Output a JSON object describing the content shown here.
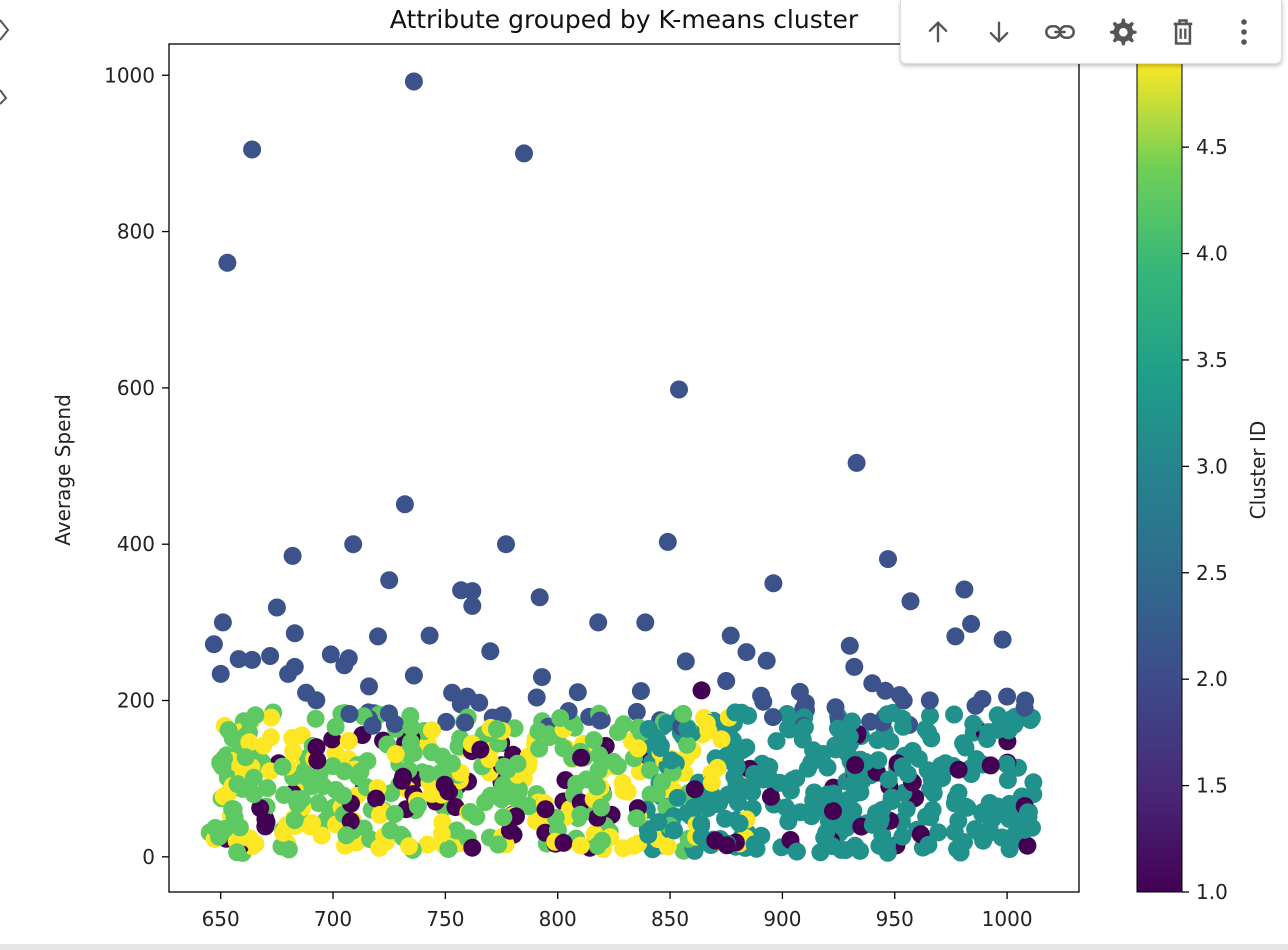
{
  "toolbar": {
    "buttons": [
      {
        "name": "move-up-button",
        "icon": "arrow-up-icon"
      },
      {
        "name": "move-down-button",
        "icon": "arrow-down-icon"
      },
      {
        "name": "copy-link-button",
        "icon": "link-icon"
      },
      {
        "name": "settings-button",
        "icon": "gear-icon"
      },
      {
        "name": "delete-button",
        "icon": "trash-icon"
      },
      {
        "name": "more-options-button",
        "icon": "more-vert-icon"
      }
    ]
  },
  "chart_data": {
    "type": "scatter",
    "title": "Attribute grouped by K-means cluster",
    "xlabel": "",
    "ylabel": "Average Spend",
    "xlim": [
      627,
      1032
    ],
    "ylim": [
      -45,
      1040
    ],
    "xticks": [
      650,
      700,
      750,
      800,
      850,
      900,
      950,
      1000
    ],
    "yticks": [
      0,
      200,
      400,
      600,
      800,
      1000
    ],
    "colorbar": {
      "label": "Cluster ID",
      "range": [
        1.0,
        4.9
      ],
      "ticks": [
        1.0,
        1.5,
        2.0,
        2.5,
        3.0,
        3.5,
        4.0,
        4.5
      ],
      "colormap": "viridis"
    },
    "colors": {
      "1": "#440154",
      "2": "#3b528b",
      "3": "#21918c",
      "4": "#5ec962",
      "5": "#fde725"
    },
    "outliers": [
      {
        "x": 653,
        "y": 760,
        "c": 2
      },
      {
        "x": 664,
        "y": 905,
        "c": 2
      },
      {
        "x": 736,
        "y": 992,
        "c": 2
      },
      {
        "x": 785,
        "y": 900,
        "c": 2
      },
      {
        "x": 854,
        "y": 598,
        "c": 2
      },
      {
        "x": 933,
        "y": 504,
        "c": 2
      },
      {
        "x": 732,
        "y": 451,
        "c": 2
      },
      {
        "x": 849,
        "y": 403,
        "c": 2
      },
      {
        "x": 709,
        "y": 400,
        "c": 2
      },
      {
        "x": 777,
        "y": 400,
        "c": 2
      },
      {
        "x": 682,
        "y": 385,
        "c": 2
      },
      {
        "x": 947,
        "y": 381,
        "c": 2
      },
      {
        "x": 725,
        "y": 354,
        "c": 2
      },
      {
        "x": 896,
        "y": 350,
        "c": 2
      },
      {
        "x": 981,
        "y": 342,
        "c": 2
      },
      {
        "x": 757,
        "y": 341,
        "c": 2
      },
      {
        "x": 762,
        "y": 340,
        "c": 2
      },
      {
        "x": 792,
        "y": 332,
        "c": 2
      },
      {
        "x": 957,
        "y": 327,
        "c": 2
      },
      {
        "x": 762,
        "y": 321,
        "c": 2
      },
      {
        "x": 675,
        "y": 319,
        "c": 2
      },
      {
        "x": 651,
        "y": 300,
        "c": 2
      },
      {
        "x": 818,
        "y": 300,
        "c": 2
      },
      {
        "x": 839,
        "y": 300,
        "c": 2
      },
      {
        "x": 984,
        "y": 298,
        "c": 2
      },
      {
        "x": 683,
        "y": 286,
        "c": 2
      },
      {
        "x": 743,
        "y": 283,
        "c": 2
      },
      {
        "x": 720,
        "y": 282,
        "c": 2
      },
      {
        "x": 877,
        "y": 283,
        "c": 2
      },
      {
        "x": 977,
        "y": 282,
        "c": 2
      },
      {
        "x": 998,
        "y": 278,
        "c": 2
      },
      {
        "x": 647,
        "y": 272,
        "c": 2
      },
      {
        "x": 930,
        "y": 270,
        "c": 2
      },
      {
        "x": 770,
        "y": 263,
        "c": 2
      },
      {
        "x": 884,
        "y": 262,
        "c": 2
      },
      {
        "x": 699,
        "y": 259,
        "c": 2
      },
      {
        "x": 672,
        "y": 257,
        "c": 2
      },
      {
        "x": 707,
        "y": 254,
        "c": 2
      },
      {
        "x": 658,
        "y": 253,
        "c": 2
      },
      {
        "x": 664,
        "y": 252,
        "c": 2
      },
      {
        "x": 893,
        "y": 251,
        "c": 2
      },
      {
        "x": 857,
        "y": 250,
        "c": 2
      },
      {
        "x": 705,
        "y": 245,
        "c": 2
      },
      {
        "x": 683,
        "y": 243,
        "c": 2
      },
      {
        "x": 932,
        "y": 243,
        "c": 2
      },
      {
        "x": 650,
        "y": 234,
        "c": 2
      },
      {
        "x": 680,
        "y": 234,
        "c": 2
      },
      {
        "x": 736,
        "y": 232,
        "c": 2
      },
      {
        "x": 793,
        "y": 230,
        "c": 2
      },
      {
        "x": 875,
        "y": 225,
        "c": 2
      },
      {
        "x": 940,
        "y": 222,
        "c": 2
      },
      {
        "x": 716,
        "y": 218,
        "c": 2
      },
      {
        "x": 864,
        "y": 213,
        "c": 1
      },
      {
        "x": 837,
        "y": 212,
        "c": 2
      },
      {
        "x": 688,
        "y": 210,
        "c": 2
      },
      {
        "x": 753,
        "y": 210,
        "c": 2
      },
      {
        "x": 989,
        "y": 202,
        "c": 2
      },
      {
        "x": 1008,
        "y": 200,
        "c": 2
      },
      {
        "x": 1000,
        "y": 205,
        "c": 2
      },
      {
        "x": 954,
        "y": 200,
        "c": 2
      }
    ],
    "bands": [
      {
        "c": 4,
        "n": 210,
        "x": [
          645,
          860
        ],
        "y": [
          5,
          185
        ],
        "seed": 11
      },
      {
        "c": 5,
        "n": 170,
        "x": [
          645,
          885
        ],
        "y": [
          10,
          180
        ],
        "seed": 23
      },
      {
        "c": 1,
        "n": 95,
        "x": [
          645,
          1010
        ],
        "y": [
          10,
          160
        ],
        "seed": 37
      },
      {
        "c": 3,
        "n": 300,
        "x": [
          838,
          1012
        ],
        "y": [
          5,
          185
        ],
        "seed": 41
      },
      {
        "c": 2,
        "n": 45,
        "x": [
          690,
          1010
        ],
        "y": [
          165,
          215
        ],
        "seed": 53
      }
    ]
  }
}
